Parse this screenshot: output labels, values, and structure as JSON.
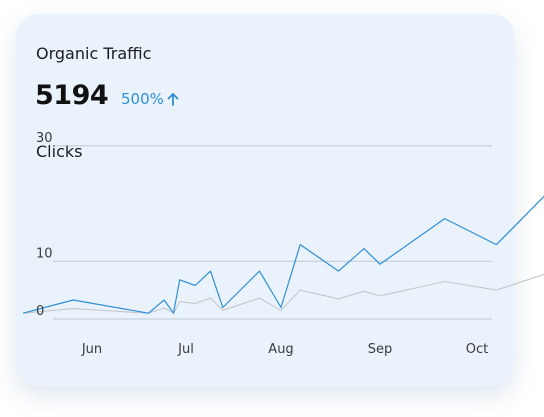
{
  "card": {
    "title": "Organic Traffic",
    "metric_value": "5194",
    "metric_change": "500%",
    "metric_change_icon": "arrow-up-icon",
    "chart_label": "Clicks"
  },
  "colors": {
    "card_bg": "#eaf3fc",
    "primary_line": "#2f8fd6",
    "secondary_line": "#c4c7cc",
    "grid": "#bfc8d4",
    "change_text": "#2f8fd6"
  },
  "chart_data": {
    "type": "line",
    "title": "",
    "xlabel": "",
    "ylabel": "",
    "ylim": [
      0,
      39
    ],
    "y_ticks": [
      0,
      10,
      30
    ],
    "x_tick_labels": [
      "Jun",
      "Jul",
      "Aug",
      "Sep",
      "Oct"
    ],
    "x_tick_dates": [
      "2023-06-01",
      "2023-07-01",
      "2023-08-01",
      "2023-09-01",
      "2023-10-01"
    ],
    "grid": true,
    "legend": "none",
    "series": [
      {
        "color": "#2f8fd6",
        "points": [
          [
            "2023-05-10",
            1
          ],
          [
            "2023-05-26",
            3.3
          ],
          [
            "2023-06-19",
            1
          ],
          [
            "2023-06-24",
            3.3
          ],
          [
            "2023-06-27",
            1
          ],
          [
            "2023-06-29",
            6.8
          ],
          [
            "2023-07-04",
            5.8
          ],
          [
            "2023-07-09",
            8.3
          ],
          [
            "2023-07-13",
            2
          ],
          [
            "2023-07-25",
            8.3
          ],
          [
            "2023-08-01",
            2
          ],
          [
            "2023-08-07",
            12.9
          ],
          [
            "2023-08-19",
            8.3
          ],
          [
            "2023-08-27",
            12.2
          ],
          [
            "2023-09-01",
            9.5
          ],
          [
            "2023-09-21",
            17.4
          ],
          [
            "2023-10-07",
            12.9
          ],
          [
            "2023-10-22",
            21.4
          ]
        ]
      },
      {
        "color": "#c4c7cc",
        "points": [
          [
            "2023-05-10",
            1
          ],
          [
            "2023-05-26",
            1.8
          ],
          [
            "2023-06-19",
            1
          ],
          [
            "2023-06-24",
            1.9
          ],
          [
            "2023-06-27",
            1
          ],
          [
            "2023-06-29",
            3
          ],
          [
            "2023-07-04",
            2.7
          ],
          [
            "2023-07-09",
            3.6
          ],
          [
            "2023-07-13",
            1.5
          ],
          [
            "2023-07-25",
            3.6
          ],
          [
            "2023-08-01",
            1.5
          ],
          [
            "2023-08-07",
            5
          ],
          [
            "2023-08-19",
            3.5
          ],
          [
            "2023-08-27",
            4.8
          ],
          [
            "2023-09-01",
            4
          ],
          [
            "2023-09-21",
            6.5
          ],
          [
            "2023-10-07",
            5
          ],
          [
            "2023-10-22",
            7.8
          ]
        ]
      }
    ]
  }
}
